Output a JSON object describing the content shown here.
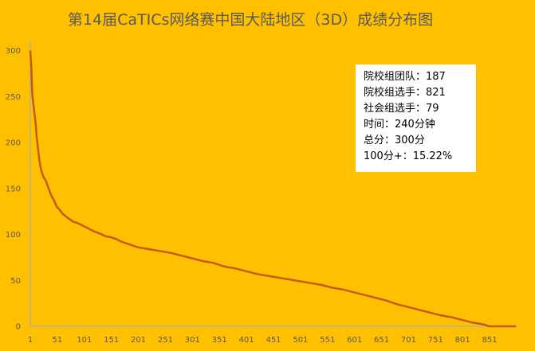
{
  "chart_data": {
    "type": "line",
    "title": "第14届CaTICs网络赛中国大陆地区（3D）成绩分布图",
    "xlabel": "",
    "ylabel": "",
    "x_ticks": [
      "1",
      "51",
      "101",
      "151",
      "201",
      "251",
      "301",
      "351",
      "401",
      "451",
      "501",
      "551",
      "601",
      "651",
      "701",
      "751",
      "801",
      "851"
    ],
    "y_ticks": [
      "0",
      "50",
      "100",
      "150",
      "200",
      "250",
      "300"
    ],
    "xlim": [
      1,
      901
    ],
    "ylim": [
      0,
      310
    ],
    "grid": false,
    "legend": "none",
    "series": [
      {
        "color": "#C55A11",
        "x": [
          1,
          2,
          3,
          4,
          5,
          7,
          9,
          11,
          13,
          15,
          18,
          21,
          25,
          30,
          35,
          40,
          45,
          50,
          55,
          60,
          70,
          80,
          90,
          100,
          110,
          120,
          130,
          140,
          150,
          160,
          170,
          180,
          190,
          200,
          220,
          240,
          260,
          280,
          300,
          320,
          340,
          360,
          380,
          400,
          420,
          440,
          460,
          480,
          500,
          520,
          540,
          560,
          580,
          600,
          620,
          640,
          660,
          680,
          700,
          720,
          740,
          760,
          780,
          800,
          820,
          830,
          840,
          845,
          850,
          860,
          880,
          900
        ],
        "y": [
          300,
          290,
          280,
          262,
          250,
          240,
          230,
          220,
          205,
          195,
          180,
          170,
          163,
          158,
          150,
          142,
          137,
          130,
          127,
          123,
          118,
          114,
          112,
          109,
          106,
          103,
          101,
          98,
          97,
          95,
          92,
          90,
          88,
          86,
          84,
          82,
          80,
          77,
          74,
          71,
          69,
          65,
          63,
          60,
          57,
          55,
          53,
          51,
          49,
          47,
          45,
          42,
          40,
          37,
          34,
          31,
          28,
          24,
          21,
          18,
          15,
          12,
          10,
          7,
          4,
          3,
          2,
          1,
          0,
          0,
          0,
          0
        ]
      }
    ]
  },
  "info_box": {
    "lines": [
      "院校组团队：187",
      "院校组选手：821",
      "社会组选手：79",
      "时间：240分钟",
      "总分：300分",
      "100分+：15.22%"
    ]
  },
  "colors": {
    "background": "#FFC000",
    "line": "#C55A11",
    "axis": "#8FAADC",
    "text": "#595959"
  }
}
